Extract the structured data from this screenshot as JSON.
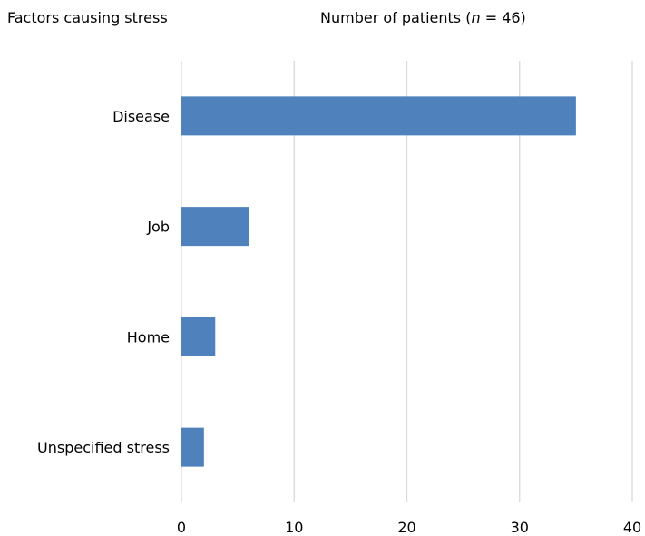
{
  "chart_data": {
    "type": "bar",
    "orientation": "horizontal",
    "ylabel": "Factors causing stress",
    "xlabel_prefix": "Number of patients (",
    "xlabel_var": "n",
    "xlabel_suffix": " = 46)",
    "categories": [
      "Disease",
      "Job",
      "Home",
      "Unspecified stress"
    ],
    "values": [
      35,
      6,
      3,
      2
    ],
    "xlim": [
      0,
      40
    ],
    "xticks": [
      0,
      10,
      20,
      30,
      40
    ],
    "xtick_labels": [
      "0",
      "10",
      "20",
      "30",
      "40"
    ],
    "grid": "vertical",
    "legend": "none",
    "bar_color": "#4f81bd",
    "grid_color": "#d9d9d9"
  }
}
